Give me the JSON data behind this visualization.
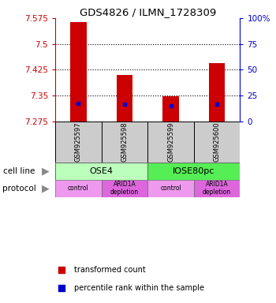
{
  "title": "GDS4826 / ILMN_1728309",
  "samples": [
    "GSM925597",
    "GSM925598",
    "GSM925599",
    "GSM925600"
  ],
  "bar_bottom": 7.275,
  "bar_tops": [
    7.5625,
    7.41,
    7.348,
    7.445
  ],
  "blue_values": [
    7.328,
    7.325,
    7.32,
    7.325
  ],
  "ylim": [
    7.275,
    7.575
  ],
  "yticks": [
    7.275,
    7.35,
    7.425,
    7.5,
    7.575
  ],
  "ytick_labels": [
    "7.275",
    "7.35",
    "7.425",
    "7.5",
    "7.575"
  ],
  "right_yticks": [
    0,
    25,
    50,
    75,
    100
  ],
  "right_ytick_labels": [
    "0",
    "25",
    "50",
    "75",
    "100%"
  ],
  "bar_color": "#cc0000",
  "blue_color": "#0000cc",
  "protocols": [
    "control",
    "ARID1A\ndepletion",
    "control",
    "ARID1A\ndepletion"
  ],
  "protocol_light": "#ee99ee",
  "protocol_dark": "#dd66dd",
  "ose4_color": "#bbffbb",
  "iose_color": "#55ee55",
  "sample_bg_color": "#cccccc",
  "bar_width": 0.35,
  "legend_red": "transformed count",
  "legend_blue": "percentile rank within the sample",
  "left_axis_color": "#cc0000",
  "right_axis_color": "#0000cc"
}
